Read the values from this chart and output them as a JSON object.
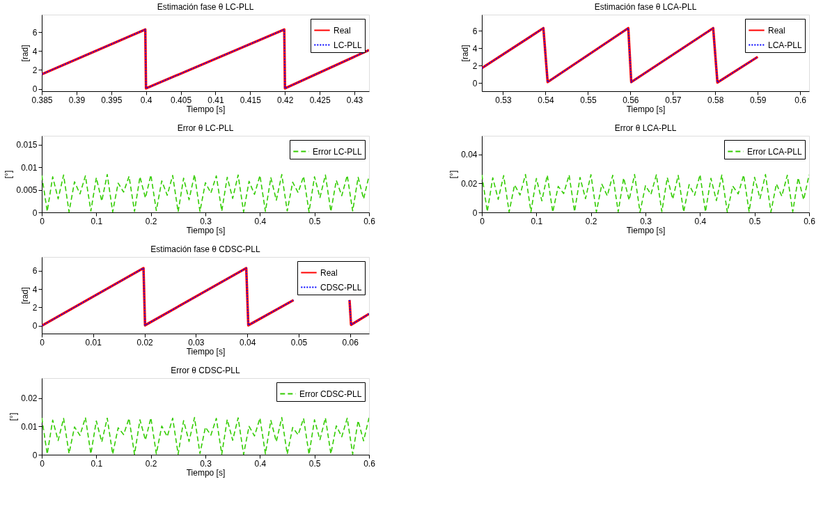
{
  "chart_data": [
    {
      "type": "line",
      "title": "Estimación fase θ LC-PLL",
      "xlabel": "Tiempo [s]",
      "ylabel": "[rad]",
      "x": [
        0.385,
        0.3999,
        0.4,
        0.4199,
        0.42,
        0.4321
      ],
      "xlim": [
        0.385,
        0.4321
      ],
      "xticks": [
        0.385,
        0.39,
        0.395,
        0.4,
        0.405,
        0.41,
        0.415,
        0.42,
        0.425,
        0.43
      ],
      "ylim": [
        -0.25,
        7.85
      ],
      "yticks": [
        0,
        2,
        4,
        6
      ],
      "grid": false,
      "legend": "top right",
      "series": [
        {
          "name": "Real",
          "color": "#ff0000",
          "line_style": "solid",
          "values": [
            1.55,
            6.28,
            0.05,
            6.28,
            0.05,
            4.1
          ]
        },
        {
          "name": "LC-PLL",
          "color": "#0000ff",
          "line_style": "dotted",
          "values": [
            1.55,
            6.28,
            0.05,
            6.28,
            0.05,
            4.1
          ]
        }
      ]
    },
    {
      "type": "line",
      "title": "Error θ LC-PLL",
      "xlabel": "Tiempo [s]",
      "ylabel": "[°]",
      "x": [
        0,
        0.01,
        0.02,
        0.03,
        0.04,
        0.05,
        0.06,
        0.07,
        0.08,
        0.09,
        0.1,
        0.11,
        0.12,
        0.13,
        0.14,
        0.15,
        0.16,
        0.17,
        0.18,
        0.19,
        0.2,
        0.21,
        0.22,
        0.23,
        0.24,
        0.25,
        0.26,
        0.27,
        0.28,
        0.29,
        0.3,
        0.31,
        0.32,
        0.33,
        0.34,
        0.35,
        0.36,
        0.37,
        0.38,
        0.39,
        0.4,
        0.41,
        0.42,
        0.43,
        0.44,
        0.45,
        0.46,
        0.47,
        0.48,
        0.49,
        0.5,
        0.51,
        0.52,
        0.53,
        0.54,
        0.55,
        0.56,
        0.57,
        0.58,
        0.59,
        0.6
      ],
      "xlim": [
        0,
        0.6
      ],
      "xticks": [
        0,
        0.1,
        0.2,
        0.3,
        0.4,
        0.5,
        0.6
      ],
      "ylim": [
        0,
        0.017
      ],
      "yticks": [
        0,
        0.005,
        0.01,
        0.015
      ],
      "grid": false,
      "legend": "top right",
      "series": [
        {
          "name": "Error LC-PLL",
          "color": "#33cc00",
          "line_style": "dashed",
          "values": [
            0.0082,
            0.0002,
            0.0079,
            0.003,
            0.0083,
            0.0001,
            0.0068,
            0.0041,
            0.0081,
            0.0003,
            0.0077,
            0.0025,
            0.0084,
            0.0001,
            0.0065,
            0.0045,
            0.008,
            0.0002,
            0.0079,
            0.0032,
            0.0083,
            0.0004,
            0.007,
            0.0038,
            0.0082,
            0.0001,
            0.0076,
            0.0028,
            0.0084,
            0.0002,
            0.0066,
            0.0043,
            0.0081,
            0.0003,
            0.0078,
            0.0031,
            0.0083,
            0.0001,
            0.0069,
            0.004,
            0.0082,
            0.0002,
            0.0077,
            0.0027,
            0.0084,
            0.0003,
            0.0067,
            0.0044,
            0.008,
            0.0001,
            0.0079,
            0.0033,
            0.0083,
            0.0002,
            0.0071,
            0.0037,
            0.0082,
            0.0003,
            0.0078,
            0.003,
            0.0081
          ]
        }
      ]
    },
    {
      "type": "line",
      "title": "Estimación fase θ CDSC-PLL",
      "xlabel": "Tiempo [s]",
      "ylabel": "[rad]",
      "x": [
        0,
        0.0198,
        0.0201,
        0.0398,
        0.0402,
        0.049,
        0.056,
        0.0599,
        0.0602,
        0.0637
      ],
      "xlim": [
        0,
        0.0637
      ],
      "xticks": [
        0,
        0.01,
        0.02,
        0.03,
        0.04,
        0.05,
        0.06
      ],
      "ylim": [
        -0.85,
        7.5
      ],
      "yticks": [
        0,
        2,
        4,
        6
      ],
      "grid": false,
      "legend": "top right",
      "series": [
        {
          "name": "Real",
          "color": "#ff0000",
          "line_style": "solid",
          "values": [
            0,
            6.28,
            0.05,
            6.28,
            0.05,
            2.8,
            null,
            2.8,
            0.1,
            1.3
          ]
        },
        {
          "name": "CDSC-PLL",
          "color": "#0000ff",
          "line_style": "dotted",
          "values": [
            0,
            6.28,
            0.05,
            6.28,
            0.05,
            2.8,
            null,
            2.8,
            0.1,
            1.3
          ]
        }
      ]
    },
    {
      "type": "line",
      "title": "Error θ CDSC-PLL",
      "xlabel": "Tiempo [s]",
      "ylabel": "[°]",
      "x": [
        0,
        0.01,
        0.02,
        0.03,
        0.04,
        0.05,
        0.06,
        0.07,
        0.08,
        0.09,
        0.1,
        0.11,
        0.12,
        0.13,
        0.14,
        0.15,
        0.16,
        0.17,
        0.18,
        0.19,
        0.2,
        0.21,
        0.22,
        0.23,
        0.24,
        0.25,
        0.26,
        0.27,
        0.28,
        0.29,
        0.3,
        0.31,
        0.32,
        0.33,
        0.34,
        0.35,
        0.36,
        0.37,
        0.38,
        0.39,
        0.4,
        0.41,
        0.42,
        0.43,
        0.44,
        0.45,
        0.46,
        0.47,
        0.48,
        0.49,
        0.5,
        0.51,
        0.52,
        0.53,
        0.54,
        0.55,
        0.56,
        0.57,
        0.58,
        0.59,
        0.6
      ],
      "xlim": [
        0,
        0.6
      ],
      "xticks": [
        0,
        0.1,
        0.2,
        0.3,
        0.4,
        0.5,
        0.6
      ],
      "ylim": [
        0,
        0.027
      ],
      "yticks": [
        0,
        0.01,
        0.02
      ],
      "grid": false,
      "legend": "top right",
      "series": [
        {
          "name": "Error CDSC-PLL",
          "color": "#33cc00",
          "line_style": "dashed",
          "values": [
            0.013,
            0.0002,
            0.0122,
            0.005,
            0.0128,
            0.0004,
            0.0098,
            0.0068,
            0.0131,
            0.0003,
            0.0119,
            0.0045,
            0.0129,
            0.0002,
            0.0095,
            0.0071,
            0.0128,
            0.0001,
            0.0123,
            0.0052,
            0.013,
            0.0003,
            0.0101,
            0.0064,
            0.0129,
            0.0002,
            0.012,
            0.0047,
            0.0131,
            0.0004,
            0.0097,
            0.0069,
            0.0128,
            0.0002,
            0.0124,
            0.0051,
            0.013,
            0.0001,
            0.01,
            0.0066,
            0.0129,
            0.0003,
            0.0121,
            0.0046,
            0.0131,
            0.0002,
            0.0096,
            0.007,
            0.0128,
            0.0001,
            0.0123,
            0.0053,
            0.013,
            0.0003,
            0.0102,
            0.0063,
            0.0129,
            0.0002,
            0.012,
            0.0049,
            0.013
          ]
        }
      ]
    },
    {
      "type": "line",
      "title": "Estimación fase θ LCA-PLL",
      "xlabel": "Tiempo [s]",
      "ylabel": "[rad]",
      "x": [
        0.525,
        0.5395,
        0.5405,
        0.5595,
        0.5602,
        0.5795,
        0.5805,
        0.59
      ],
      "xlim": [
        0.525,
        0.6021
      ],
      "xticks": [
        0.53,
        0.54,
        0.55,
        0.56,
        0.57,
        0.58,
        0.59,
        0.6
      ],
      "ylim": [
        -0.95,
        7.85
      ],
      "yticks": [
        0,
        2,
        4,
        6
      ],
      "grid": false,
      "legend": "top right",
      "series": [
        {
          "name": "Real",
          "color": "#ff0000",
          "line_style": "solid",
          "values": [
            1.7,
            6.3,
            0.1,
            6.3,
            0.1,
            6.3,
            0.05,
            3.0
          ]
        },
        {
          "name": "LCA-PLL",
          "color": "#0000ff",
          "line_style": "dotted",
          "values": [
            1.7,
            6.3,
            0.1,
            6.3,
            0.1,
            6.3,
            0.05,
            3.0
          ]
        }
      ]
    },
    {
      "type": "line",
      "title": "Error θ LCA-PLL",
      "xlabel": "Tiempo [s]",
      "ylabel": "[°]",
      "x": [
        0,
        0.01,
        0.02,
        0.03,
        0.04,
        0.05,
        0.06,
        0.07,
        0.08,
        0.09,
        0.1,
        0.11,
        0.12,
        0.13,
        0.14,
        0.15,
        0.16,
        0.17,
        0.18,
        0.19,
        0.2,
        0.21,
        0.22,
        0.23,
        0.24,
        0.25,
        0.26,
        0.27,
        0.28,
        0.29,
        0.3,
        0.31,
        0.32,
        0.33,
        0.34,
        0.35,
        0.36,
        0.37,
        0.38,
        0.39,
        0.4,
        0.41,
        0.42,
        0.43,
        0.44,
        0.45,
        0.46,
        0.47,
        0.48,
        0.49,
        0.5,
        0.51,
        0.52,
        0.53,
        0.54,
        0.55,
        0.56,
        0.57,
        0.58,
        0.59,
        0.6
      ],
      "xlim": [
        0,
        0.6
      ],
      "xticks": [
        0,
        0.1,
        0.2,
        0.3,
        0.4,
        0.5,
        0.6
      ],
      "ylim": [
        0,
        0.053
      ],
      "yticks": [
        0,
        0.02,
        0.04
      ],
      "grid": false,
      "legend": "top right",
      "series": [
        {
          "name": "Error LCA-PLL",
          "color": "#33cc00",
          "line_style": "dashed",
          "values": [
            0.026,
            0.0005,
            0.024,
            0.009,
            0.0255,
            0.0003,
            0.019,
            0.012,
            0.0262,
            0.0004,
            0.0235,
            0.008,
            0.0258,
            0.0002,
            0.018,
            0.013,
            0.0259,
            0.0005,
            0.0242,
            0.0095,
            0.0261,
            0.0003,
            0.0195,
            0.0115,
            0.0257,
            0.0004,
            0.0238,
            0.0085,
            0.0262,
            0.0002,
            0.0185,
            0.0125,
            0.026,
            0.0005,
            0.0241,
            0.0092,
            0.0256,
            0.0003,
            0.0192,
            0.0118,
            0.0261,
            0.0004,
            0.0236,
            0.0082,
            0.0259,
            0.0002,
            0.0182,
            0.0128,
            0.0258,
            0.0005,
            0.0243,
            0.0096,
            0.0262,
            0.0003,
            0.0197,
            0.0112,
            0.0257,
            0.0004,
            0.0239,
            0.0088,
            0.026
          ]
        }
      ]
    }
  ]
}
